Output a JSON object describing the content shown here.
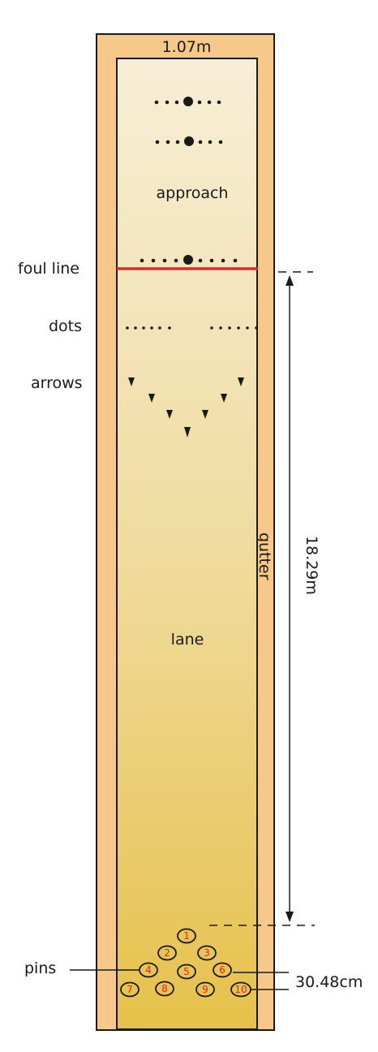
{
  "labels": {
    "width": "1.07m",
    "approach": "approach",
    "foul_line": "foul line",
    "dots": "dots",
    "arrows": "arrows",
    "gutter": "gutter",
    "length": "18.29m",
    "lane": "lane",
    "pins": "pins",
    "pin_spacing": "30.48cm"
  },
  "pins": [
    {
      "number": "1"
    },
    {
      "number": "2"
    },
    {
      "number": "3"
    },
    {
      "number": "4"
    },
    {
      "number": "5"
    },
    {
      "number": "6"
    },
    {
      "number": "7"
    },
    {
      "number": "8"
    },
    {
      "number": "9"
    },
    {
      "number": "10"
    }
  ],
  "colors": {
    "gutter": "#f6c98a",
    "outline": "#1a1a1a",
    "lane_top": "#f7eed6",
    "lane_bottom": "#e6c14a",
    "foul_line": "#e3262a",
    "pin_number": "#e8261e"
  }
}
